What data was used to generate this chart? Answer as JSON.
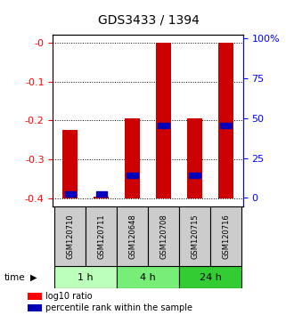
{
  "title": "GDS3433 / 1394",
  "samples": [
    "GSM120710",
    "GSM120711",
    "GSM120648",
    "GSM120708",
    "GSM120715",
    "GSM120716"
  ],
  "log10_ratio": [
    -0.225,
    -0.395,
    -0.195,
    0.0,
    -0.195,
    0.0
  ],
  "bar_bottom": -0.4,
  "percentile_rank": [
    3,
    3,
    15,
    47,
    15,
    47
  ],
  "time_groups": [
    {
      "label": "1 h",
      "start": 0,
      "end": 2,
      "color": "#bbffbb"
    },
    {
      "label": "4 h",
      "start": 2,
      "end": 4,
      "color": "#77ee77"
    },
    {
      "label": "24 h",
      "start": 4,
      "end": 6,
      "color": "#33cc33"
    }
  ],
  "ylim_left": [
    -0.42,
    0.02
  ],
  "ylim_right": [
    -5.25,
    102.5
  ],
  "left_ticks": [
    0.0,
    -0.1,
    -0.2,
    -0.3,
    -0.4
  ],
  "right_ticks": [
    100,
    75,
    50,
    25,
    0
  ],
  "bar_color": "#cc0000",
  "percentile_color": "#0000bb",
  "background_color": "#ffffff",
  "sample_bg": "#cccccc"
}
